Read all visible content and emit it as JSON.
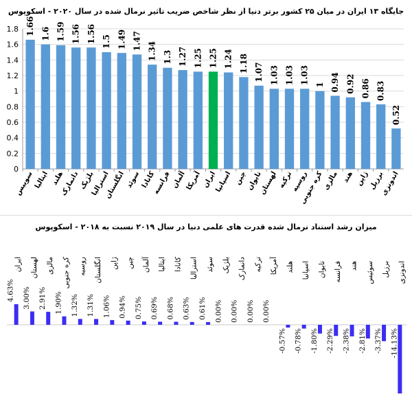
{
  "chart_data": [
    {
      "type": "bar",
      "title": "جایگاه ۱۳ ایران در میان ۲۵ کشور برتر دنیا از نظر شاخص ضریب تاثیر نرمال شده در سال ۲۰۲۰ - اسکوپوس",
      "categories": [
        "سوییس",
        "ایتالیا",
        "هلند",
        "دانمارک",
        "بلژیک",
        "استرالیا",
        "انگلستان",
        "سوئد",
        "کانادا",
        "فرانسه",
        "آلمان",
        "آمریکا",
        "ایران",
        "اسپانیا",
        "چین",
        "تایوان",
        "لهستان",
        "ترکیه",
        "روسیه",
        "کره جنوبی",
        "مالزی",
        "هند",
        "ژاپن",
        "برزیل",
        "اندونزی"
      ],
      "values": [
        1.66,
        1.6,
        1.59,
        1.56,
        1.56,
        1.5,
        1.49,
        1.47,
        1.34,
        1.3,
        1.27,
        1.25,
        1.25,
        1.24,
        1.18,
        1.07,
        1.03,
        1.03,
        1.03,
        1,
        0.94,
        0.92,
        0.86,
        0.83,
        0.52
      ],
      "value_labels": [
        "1.66",
        "1.6",
        "1.59",
        "1.56",
        "1.56",
        "1.5",
        "1.49",
        "1.47",
        "1.34",
        "1.3",
        "1.27",
        "1.25",
        "1.25",
        "1.24",
        "1.18",
        "1.07",
        "1.03",
        "1.03",
        "1.03",
        "1",
        "0.94",
        "0.92",
        "0.86",
        "0.83",
        "0.52"
      ],
      "highlight": "ایران",
      "ylim": [
        0,
        1.8
      ],
      "yticks": [
        "0",
        "0.2",
        "0.4",
        "0.6",
        "0.8",
        "1",
        "1.2",
        "1.4",
        "1.6",
        "1.8"
      ],
      "xlabel": "",
      "ylabel": "",
      "grid": true,
      "colors": {
        "bar": "#5b9bd5",
        "highlight": "#00b050",
        "grid": "#d9d9d9"
      }
    },
    {
      "type": "bar",
      "title": "میزان رشد استناد نرمال شده قدرت های علمی دنیا در سال ۲۰۱۹ نسبت به ۲۰۱۸ - اسکوپوس",
      "categories": [
        "ایران",
        "لهستان",
        "مالزی",
        "کره جنوبی",
        "روسیه",
        "انگلستان",
        "ژاپن",
        "چین",
        "آلمان",
        "ایتالیا",
        "کانادا",
        "استرالیا",
        "سوئد",
        "بلژیک",
        "دانمارک",
        "ترکیه",
        "آمریکا",
        "هلند",
        "اسپانیا",
        "تایوان",
        "فرانسه",
        "هند",
        "سوئیس",
        "برزیل",
        "اندونزی"
      ],
      "values": [
        4.63,
        3.0,
        2.91,
        1.9,
        1.32,
        1.31,
        1.06,
        0.94,
        0.75,
        0.69,
        0.68,
        0.63,
        0.61,
        0.0,
        0.0,
        0.0,
        0.0,
        -0.57,
        -0.78,
        -1.8,
        -2.29,
        -2.38,
        -2.81,
        -3.37,
        -14.13
      ],
      "value_labels": [
        "4.63%",
        "3.00%",
        "2.91%",
        "1.90%",
        "1.32%",
        "1.31%",
        "1.06%",
        "0.94%",
        "0.75%",
        "0.69%",
        "0.68%",
        "0.63%",
        "0.61%",
        "0.00%",
        "0.00%",
        "0.00%",
        "0.00%",
        "-0.57%",
        "-0.78%",
        "-1.80%",
        "-2.29%",
        "-2.38%",
        "-2.81%",
        "-3.37%",
        "-14.13%"
      ],
      "xlabel": "",
      "ylabel": "",
      "grid": false,
      "colors": {
        "bar": "#3b2ef0"
      }
    }
  ]
}
